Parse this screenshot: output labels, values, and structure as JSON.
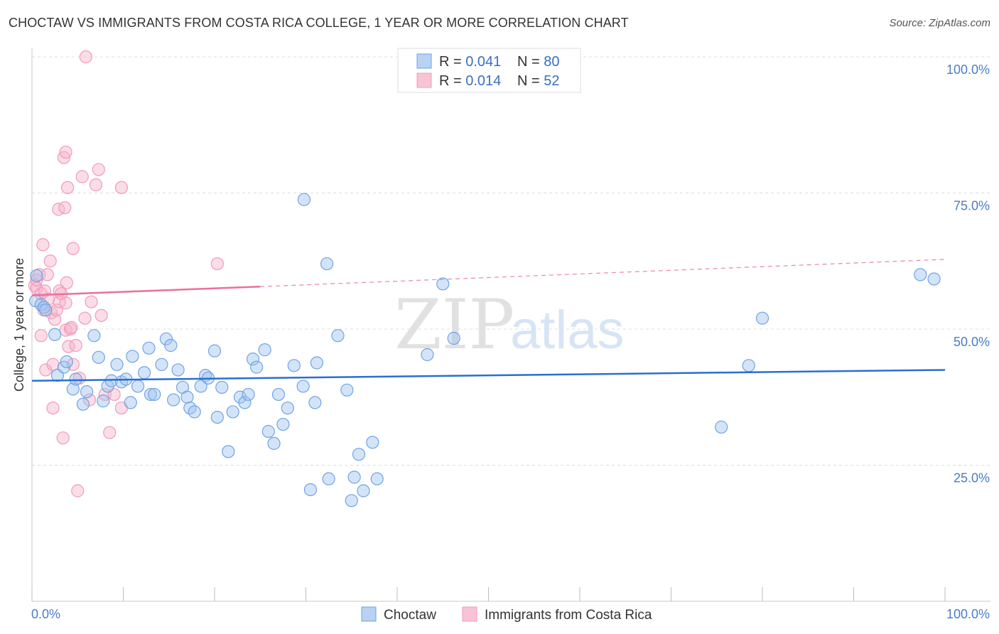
{
  "title": "CHOCTAW VS IMMIGRANTS FROM COSTA RICA COLLEGE, 1 YEAR OR MORE CORRELATION CHART",
  "source": "Source: ZipAtlas.com",
  "colors": {
    "choctaw": "#6fa3e6",
    "costa_rica": "#f09ab8",
    "choctaw_line": "#2a6fd0",
    "costa_line": "#e8709a",
    "axis_text": "#4a7cc7"
  },
  "legend": {
    "rows": [
      {
        "r_label": "R = ",
        "r_value": "0.041",
        "n_label": "N = ",
        "n_value": "80"
      },
      {
        "r_label": "R = ",
        "r_value": "0.014",
        "n_label": "N = ",
        "n_value": "52"
      }
    ]
  },
  "bottom_legend": [
    "Choctaw",
    "Immigrants from Costa Rica"
  ],
  "watermark": {
    "zip": "ZIP",
    "atlas": "atlas"
  },
  "chart_data": {
    "type": "scatter",
    "title": "CHOCTAW VS IMMIGRANTS FROM COSTA RICA COLLEGE, 1 YEAR OR MORE CORRELATION CHART",
    "xlabel": "",
    "ylabel": "College, 1 year or more",
    "xlim": [
      0,
      100
    ],
    "ylim": [
      0,
      100
    ],
    "x_tick_labels": [
      "0.0%",
      "100.0%"
    ],
    "y_ticks": [
      25,
      50,
      75,
      100
    ],
    "y_tick_labels": [
      "25.0%",
      "50.0%",
      "75.0%",
      "100.0%"
    ],
    "series": [
      {
        "name": "Choctaw",
        "r": 0.041,
        "n": 80,
        "trend": {
          "x0": 0,
          "y0": 40.5,
          "x1": 100,
          "y1": 42.5
        },
        "points": [
          [
            0.4,
            55.2
          ],
          [
            0.5,
            59.8
          ],
          [
            1.0,
            54.5
          ],
          [
            1.3,
            54.0
          ],
          [
            1.5,
            53.5
          ],
          [
            2.5,
            49.0
          ],
          [
            2.8,
            41.5
          ],
          [
            3.5,
            43.0
          ],
          [
            3.8,
            44.0
          ],
          [
            4.5,
            39.0
          ],
          [
            4.8,
            40.8
          ],
          [
            5.6,
            36.2
          ],
          [
            6.0,
            38.5
          ],
          [
            6.8,
            48.8
          ],
          [
            7.3,
            44.8
          ],
          [
            7.8,
            36.8
          ],
          [
            8.3,
            39.5
          ],
          [
            8.7,
            40.5
          ],
          [
            9.3,
            43.5
          ],
          [
            9.8,
            40.3
          ],
          [
            10.3,
            40.8
          ],
          [
            10.8,
            36.5
          ],
          [
            11.0,
            45.0
          ],
          [
            11.6,
            39.5
          ],
          [
            12.3,
            42.0
          ],
          [
            12.8,
            46.5
          ],
          [
            13.0,
            38.0
          ],
          [
            13.4,
            38.0
          ],
          [
            14.2,
            43.5
          ],
          [
            14.7,
            48.2
          ],
          [
            15.2,
            47.0
          ],
          [
            15.5,
            37.0
          ],
          [
            16.0,
            42.5
          ],
          [
            16.5,
            39.3
          ],
          [
            17.0,
            37.5
          ],
          [
            17.3,
            35.5
          ],
          [
            17.8,
            34.8
          ],
          [
            18.5,
            39.5
          ],
          [
            19.0,
            41.5
          ],
          [
            19.3,
            41.0
          ],
          [
            20.0,
            46.0
          ],
          [
            20.3,
            33.8
          ],
          [
            20.8,
            39.3
          ],
          [
            21.5,
            27.5
          ],
          [
            22.0,
            34.8
          ],
          [
            22.8,
            37.5
          ],
          [
            23.3,
            36.5
          ],
          [
            23.7,
            38.0
          ],
          [
            24.2,
            44.5
          ],
          [
            24.6,
            43.0
          ],
          [
            25.5,
            46.2
          ],
          [
            25.9,
            31.2
          ],
          [
            26.5,
            29.0
          ],
          [
            27.0,
            38.0
          ],
          [
            27.5,
            32.5
          ],
          [
            28.0,
            35.5
          ],
          [
            28.7,
            43.3
          ],
          [
            29.7,
            39.5
          ],
          [
            29.8,
            73.8
          ],
          [
            30.5,
            20.5
          ],
          [
            31.0,
            36.5
          ],
          [
            31.2,
            43.8
          ],
          [
            32.3,
            62.0
          ],
          [
            32.5,
            22.5
          ],
          [
            33.5,
            48.8
          ],
          [
            34.5,
            38.8
          ],
          [
            35.0,
            18.5
          ],
          [
            35.3,
            22.8
          ],
          [
            35.8,
            27.0
          ],
          [
            36.3,
            20.3
          ],
          [
            37.3,
            29.2
          ],
          [
            37.8,
            22.5
          ],
          [
            43.3,
            45.3
          ],
          [
            45.0,
            58.3
          ],
          [
            46.2,
            48.3
          ],
          [
            75.5,
            32.0
          ],
          [
            78.5,
            43.3
          ],
          [
            80.0,
            52.0
          ],
          [
            97.3,
            60.0
          ],
          [
            98.8,
            59.2
          ]
        ]
      },
      {
        "name": "Immigrants from Costa Rica",
        "r": 0.014,
        "n": 52,
        "trend": {
          "x0": 0,
          "y0": 56.2,
          "x1": 25,
          "y1": 57.8,
          "dashed_to_x": 100,
          "dashed_to_y": 62.8
        },
        "points": [
          [
            0.3,
            58.0
          ],
          [
            0.5,
            57.5
          ],
          [
            0.5,
            59.0
          ],
          [
            0.8,
            60.0
          ],
          [
            1.0,
            48.8
          ],
          [
            1.0,
            56.5
          ],
          [
            1.2,
            65.5
          ],
          [
            1.3,
            53.5
          ],
          [
            1.4,
            57.0
          ],
          [
            1.5,
            42.5
          ],
          [
            1.7,
            60.0
          ],
          [
            1.8,
            55.5
          ],
          [
            2.0,
            62.5
          ],
          [
            2.1,
            53.0
          ],
          [
            2.3,
            35.5
          ],
          [
            2.3,
            43.5
          ],
          [
            2.5,
            51.8
          ],
          [
            2.7,
            53.5
          ],
          [
            2.9,
            72.0
          ],
          [
            3.0,
            55.0
          ],
          [
            3.0,
            57.0
          ],
          [
            3.2,
            56.5
          ],
          [
            3.4,
            30.0
          ],
          [
            3.5,
            81.5
          ],
          [
            3.6,
            72.3
          ],
          [
            3.7,
            54.8
          ],
          [
            3.7,
            82.5
          ],
          [
            3.7,
            49.8
          ],
          [
            3.8,
            58.5
          ],
          [
            3.9,
            76.0
          ],
          [
            4.0,
            46.8
          ],
          [
            4.2,
            50.0
          ],
          [
            4.3,
            50.3
          ],
          [
            4.5,
            64.8
          ],
          [
            4.5,
            43.5
          ],
          [
            4.8,
            47.0
          ],
          [
            5.0,
            20.3
          ],
          [
            5.2,
            41.0
          ],
          [
            5.5,
            78.0
          ],
          [
            5.8,
            52.0
          ],
          [
            5.9,
            100.0
          ],
          [
            6.3,
            37.0
          ],
          [
            6.5,
            55.0
          ],
          [
            7.0,
            76.5
          ],
          [
            7.3,
            79.3
          ],
          [
            7.6,
            52.5
          ],
          [
            8.0,
            38.0
          ],
          [
            8.5,
            31.0
          ],
          [
            9.0,
            38.0
          ],
          [
            9.8,
            35.5
          ],
          [
            9.8,
            76.0
          ],
          [
            20.3,
            62.0
          ]
        ]
      }
    ]
  }
}
